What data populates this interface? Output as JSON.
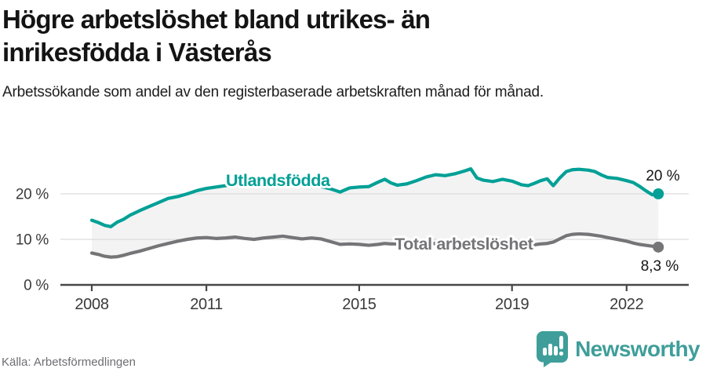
{
  "header": {
    "title": "Högre arbetslöshet bland utrikes- än inrikesfödda i Västerås",
    "subtitle": "Arbetssökande som andel av den registerbaserade arbetskraften månad för månad."
  },
  "footer": {
    "source": "Källa: Arbetsförmedlingen",
    "brand": "Newsworthy"
  },
  "colors": {
    "accent_teal": "#00A096",
    "series_gray": "#757578",
    "band_fill": "#F3F3F3",
    "grid": "#DCDCDC",
    "axis": "#474747",
    "tick_text": "#3A3A3A",
    "label_text": "#141414",
    "muted_text": "#6E6E73",
    "brand_teal": "#3F9E9A"
  },
  "chart_data": {
    "type": "line",
    "title": "Högre arbetslöshet bland utrikes- än inrikesfödda i Västerås",
    "subtitle": "Arbetssökande som andel av den registerbaserade arbetskraften månad för månad.",
    "source": "Källa: Arbetsförmedlingen",
    "xlabel": "",
    "ylabel": "",
    "ylim": [
      0,
      31
    ],
    "grid": "horizontal",
    "legend_position": "inline-labels",
    "x": [
      2008.0,
      2008.17,
      2008.33,
      2008.5,
      2008.67,
      2008.83,
      2009.0,
      2009.25,
      2009.5,
      2009.75,
      2010.0,
      2010.25,
      2010.5,
      2010.75,
      2011.0,
      2011.25,
      2011.5,
      2011.75,
      2012.0,
      2012.25,
      2012.5,
      2012.75,
      2013.0,
      2013.25,
      2013.5,
      2013.75,
      2014.0,
      2014.25,
      2014.5,
      2014.75,
      2015.0,
      2015.25,
      2015.5,
      2015.67,
      2015.83,
      2016.0,
      2016.25,
      2016.5,
      2016.75,
      2017.0,
      2017.25,
      2017.5,
      2017.75,
      2017.92,
      2018.08,
      2018.25,
      2018.5,
      2018.75,
      2019.0,
      2019.25,
      2019.42,
      2019.58,
      2019.75,
      2019.92,
      2020.08,
      2020.25,
      2020.42,
      2020.58,
      2020.75,
      2021.0,
      2021.17,
      2021.33,
      2021.5,
      2021.75,
      2022.0,
      2022.17,
      2022.33,
      2022.5,
      2022.67,
      2022.83
    ],
    "series": [
      {
        "name": "Utlandsfödda",
        "color": "#00A096",
        "end_label": "20 %",
        "values": [
          14.2,
          13.7,
          13.1,
          12.8,
          13.8,
          14.4,
          15.3,
          16.3,
          17.2,
          18.1,
          19.0,
          19.4,
          20.0,
          20.7,
          21.2,
          21.5,
          21.8,
          22.0,
          22.2,
          23.1,
          22.7,
          22.8,
          23.0,
          22.5,
          21.9,
          21.7,
          21.6,
          21.1,
          20.4,
          21.3,
          21.5,
          21.6,
          22.6,
          23.2,
          22.4,
          21.9,
          22.2,
          22.9,
          23.7,
          24.2,
          24.0,
          24.4,
          25.0,
          25.5,
          23.5,
          23.0,
          22.7,
          23.2,
          22.8,
          22.0,
          21.8,
          22.3,
          22.9,
          23.3,
          21.8,
          23.5,
          24.9,
          25.3,
          25.4,
          25.2,
          24.9,
          24.2,
          23.6,
          23.4,
          22.9,
          22.5,
          21.7,
          20.7,
          19.8,
          20.0
        ]
      },
      {
        "name": "Total arbetslöshet",
        "color": "#757578",
        "end_label": "8,3 %",
        "values": [
          7.0,
          6.7,
          6.3,
          6.1,
          6.2,
          6.5,
          6.9,
          7.4,
          8.0,
          8.6,
          9.1,
          9.6,
          10.0,
          10.3,
          10.4,
          10.2,
          10.3,
          10.5,
          10.2,
          10.0,
          10.3,
          10.5,
          10.7,
          10.4,
          10.1,
          10.3,
          10.1,
          9.5,
          8.9,
          9.0,
          8.9,
          8.7,
          8.9,
          9.1,
          9.0,
          9.0,
          8.8,
          8.8,
          9.0,
          9.1,
          8.8,
          8.7,
          8.9,
          9.0,
          8.8,
          8.6,
          8.5,
          8.7,
          8.6,
          8.5,
          8.6,
          8.8,
          9.0,
          9.1,
          9.4,
          10.1,
          10.8,
          11.1,
          11.2,
          11.1,
          10.9,
          10.7,
          10.4,
          10.0,
          9.6,
          9.2,
          8.9,
          8.7,
          8.5,
          8.3
        ]
      }
    ],
    "yticks": [
      {
        "value": 0,
        "label": "0 %"
      },
      {
        "value": 10,
        "label": "10 %"
      },
      {
        "value": 20,
        "label": "20 %"
      }
    ],
    "xticks": [
      {
        "value": 2008,
        "label": "2008"
      },
      {
        "value": 2011,
        "label": "2011"
      },
      {
        "value": 2015,
        "label": "2015"
      },
      {
        "value": 2019,
        "label": "2019"
      },
      {
        "value": 2022,
        "label": "2022"
      }
    ]
  }
}
